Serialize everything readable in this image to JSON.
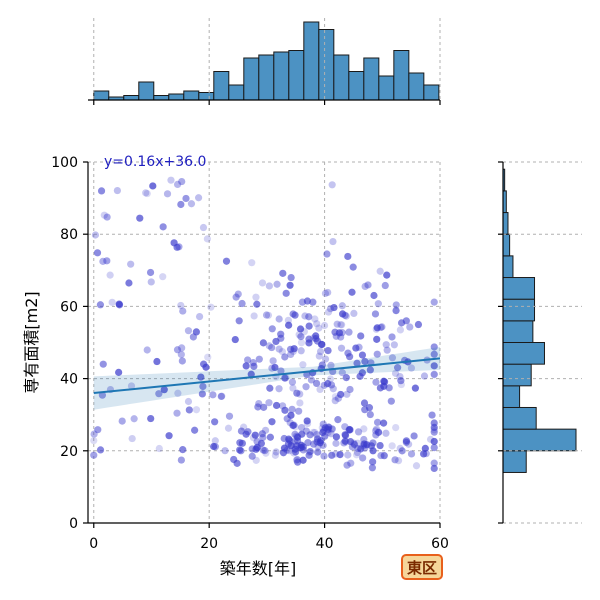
{
  "chart_data": {
    "type": "scatter",
    "xlabel": "築年数[年]",
    "ylabel": "専有面積[m2]",
    "xlim": [
      -1,
      60
    ],
    "ylim": [
      0,
      100
    ],
    "x_ticks": [
      "0",
      "20",
      "40",
      "60"
    ],
    "y_ticks": [
      "0",
      "20",
      "40",
      "60",
      "80",
      "100"
    ],
    "grid": true,
    "regression": {
      "label": "y=0.16x+36.0",
      "slope": 0.16,
      "intercept": 36.0,
      "color": "#1f77b4"
    },
    "point_color": "#3a3acc",
    "top_histogram": {
      "bin_start": 0,
      "bin_width": 2.6,
      "counts": [
        6,
        2,
        3,
        12,
        3,
        4,
        6,
        5,
        19,
        10,
        28,
        30,
        32,
        33,
        52,
        47,
        30,
        19,
        28,
        16,
        33,
        18,
        10
      ]
    },
    "right_histogram": {
      "bin_start": 14,
      "bin_width": 6,
      "counts": [
        14,
        44,
        20,
        10,
        17,
        25,
        18,
        19,
        19,
        6,
        4,
        3,
        2,
        1
      ]
    }
  },
  "badge": {
    "label": "東区",
    "background": "#f6d69a",
    "border": "#e8601c"
  }
}
